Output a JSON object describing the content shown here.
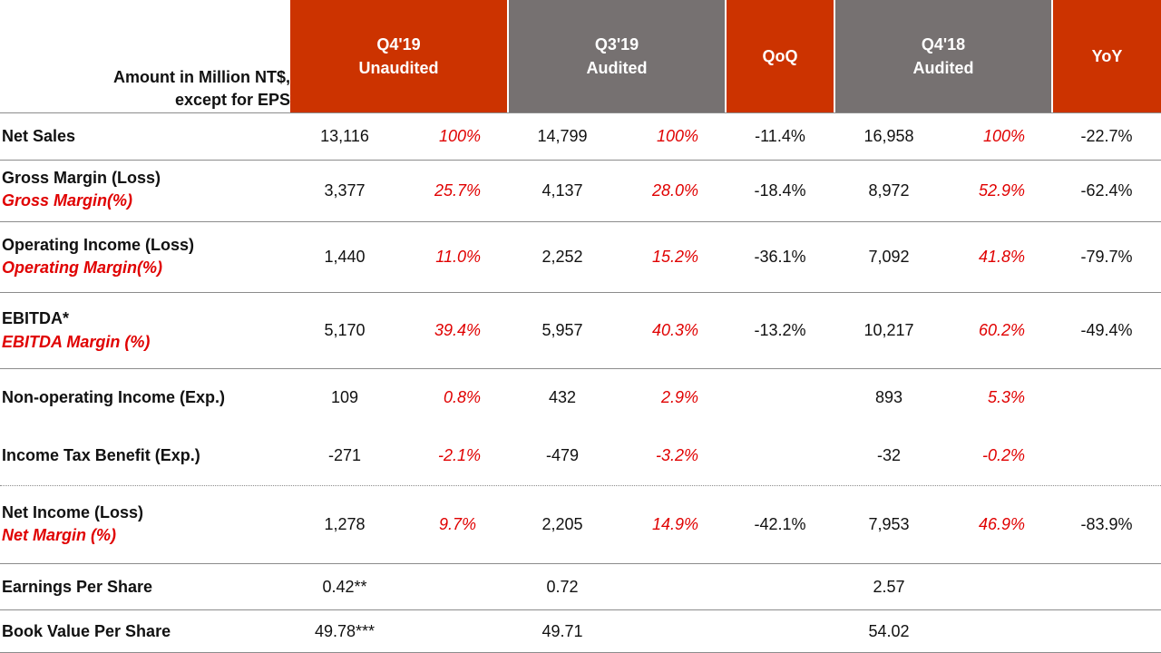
{
  "header": {
    "units_line1": "Amount in Million  NT$,",
    "units_line2": "except for EPS",
    "q4_19_title": "Q4'19",
    "q4_19_sub": "Unaudited",
    "q3_19_title": "Q3'19",
    "q3_19_sub": "Audited",
    "qoq": "QoQ",
    "q4_18_title": "Q4'18",
    "q4_18_sub": "Audited",
    "yoy": "YoY"
  },
  "colors": {
    "header_red": "#cc3300",
    "header_grey": "#767171",
    "percent_red": "#e00000"
  },
  "rows": [
    {
      "label": "Net Sales",
      "sublabel": "",
      "q4_19": "13,116",
      "q4_19_pct": "100%",
      "q3_19": "14,799",
      "q3_19_pct": "100%",
      "qoq": "-11.4%",
      "q4_18": "16,958",
      "q4_18_pct": "100%",
      "yoy": "-22.7%"
    },
    {
      "label": "Gross Margin (Loss)",
      "sublabel": "Gross Margin(%)",
      "q4_19": "3,377",
      "q4_19_pct": "25.7%",
      "q3_19": "4,137",
      "q3_19_pct": "28.0%",
      "qoq": "-18.4%",
      "q4_18": "8,972",
      "q4_18_pct": "52.9%",
      "yoy": "-62.4%"
    },
    {
      "label": "Operating Income (Loss)",
      "sublabel": "Operating Margin(%)",
      "q4_19": "1,440",
      "q4_19_pct": "11.0%",
      "q3_19": "2,252",
      "q3_19_pct": "15.2%",
      "qoq": "-36.1%",
      "q4_18": "7,092",
      "q4_18_pct": "41.8%",
      "yoy": "-79.7%"
    },
    {
      "label": "EBITDA*",
      "sublabel": "EBITDA Margin (%)",
      "q4_19": "5,170",
      "q4_19_pct": "39.4%",
      "q3_19": "5,957",
      "q3_19_pct": "40.3%",
      "qoq": "-13.2%",
      "q4_18": "10,217",
      "q4_18_pct": "60.2%",
      "yoy": "-49.4%"
    },
    {
      "label": "Non-operating Income (Exp.)",
      "sublabel": "",
      "q4_19": "109",
      "q4_19_pct": "0.8%",
      "q3_19": "432",
      "q3_19_pct": "2.9%",
      "qoq": "",
      "q4_18": "893",
      "q4_18_pct": "5.3%",
      "yoy": ""
    },
    {
      "label": "Income Tax Benefit (Exp.)",
      "sublabel": "",
      "q4_19": "-271",
      "q4_19_pct": "-2.1%",
      "q3_19": "-479",
      "q3_19_pct": "-3.2%",
      "qoq": "",
      "q4_18": "-32",
      "q4_18_pct": "-0.2%",
      "yoy": ""
    },
    {
      "label": "Net Income (Loss)",
      "sublabel": "Net Margin (%)",
      "q4_19": "1,278",
      "q4_19_pct": "9.7%",
      "q3_19": "2,205",
      "q3_19_pct": "14.9%",
      "qoq": "-42.1%",
      "q4_18": "7,953",
      "q4_18_pct": "46.9%",
      "yoy": "-83.9%"
    },
    {
      "label": "Earnings Per Share",
      "sublabel": "",
      "q4_19": "0.42**",
      "q4_19_pct": "",
      "q3_19": "0.72",
      "q3_19_pct": "",
      "qoq": "",
      "q4_18": "2.57",
      "q4_18_pct": "",
      "yoy": ""
    },
    {
      "label": "Book Value Per Share",
      "sublabel": "",
      "q4_19": "49.78***",
      "q4_19_pct": "",
      "q3_19": "49.71",
      "q3_19_pct": "",
      "qoq": "",
      "q4_18": "54.02",
      "q4_18_pct": "",
      "yoy": ""
    }
  ]
}
